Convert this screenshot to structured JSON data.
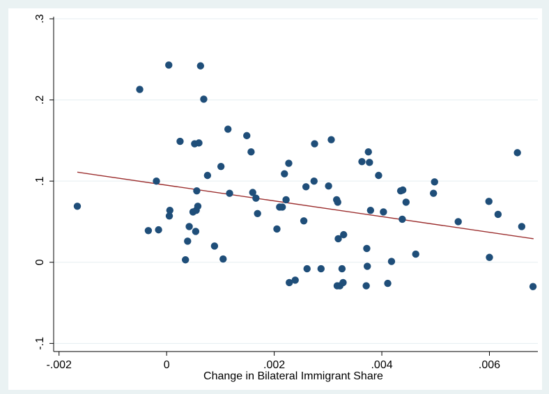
{
  "chart_data": {
    "type": "scatter",
    "title": "",
    "xlabel": "Change in Bilateral Immigrant Share",
    "ylabel": "",
    "xlim": [
      -0.0021,
      0.0069
    ],
    "ylim": [
      -0.11,
      0.3
    ],
    "x_ticks": [
      -0.002,
      0,
      0.002,
      0.004,
      0.006
    ],
    "x_tick_labels": [
      "-.002",
      "0",
      ".002",
      ".004",
      ".006"
    ],
    "y_ticks": [
      -0.1,
      0,
      0.1,
      0.2,
      0.3
    ],
    "y_tick_labels": [
      "-.1",
      "0",
      ".1",
      ".2",
      ".3"
    ],
    "grid": "horizontal",
    "legend": "none",
    "colors": {
      "outer_background": "#eaf2f3",
      "plot_background": "#ffffff",
      "marker": "#1f4e79",
      "fit_line": "#9b2d2d",
      "grid": "#e5eef1"
    },
    "series": [
      {
        "marker": "circle",
        "points": [
          [
            -0.00166,
            0.069
          ],
          [
            -0.0005,
            0.213
          ],
          [
            -0.00034,
            0.039
          ],
          [
            -0.00019,
            0.1
          ],
          [
            -0.00015,
            0.04
          ],
          [
            4e-05,
            0.243
          ],
          [
            5e-05,
            0.057
          ],
          [
            6e-05,
            0.064
          ],
          [
            0.00025,
            0.149
          ],
          [
            0.00035,
            0.003
          ],
          [
            0.00039,
            0.026
          ],
          [
            0.00042,
            0.044
          ],
          [
            0.00049,
            0.062
          ],
          [
            0.00052,
            0.146
          ],
          [
            0.00054,
            0.038
          ],
          [
            0.00055,
            0.064
          ],
          [
            0.00056,
            0.088
          ],
          [
            0.00058,
            0.069
          ],
          [
            0.0006,
            0.147
          ],
          [
            0.00063,
            0.242
          ],
          [
            0.00069,
            0.201
          ],
          [
            0.00076,
            0.107
          ],
          [
            0.00089,
            0.02
          ],
          [
            0.00101,
            0.118
          ],
          [
            0.00105,
            0.004
          ],
          [
            0.00114,
            0.164
          ],
          [
            0.00117,
            0.085
          ],
          [
            0.00149,
            0.156
          ],
          [
            0.00157,
            0.136
          ],
          [
            0.0016,
            0.086
          ],
          [
            0.00166,
            0.079
          ],
          [
            0.00169,
            0.06
          ],
          [
            0.00205,
            0.041
          ],
          [
            0.0021,
            0.068
          ],
          [
            0.00215,
            0.068
          ],
          [
            0.00219,
            0.109
          ],
          [
            0.00222,
            0.077
          ],
          [
            0.00227,
            0.122
          ],
          [
            0.00228,
            -0.025
          ],
          [
            0.00239,
            -0.022
          ],
          [
            0.00255,
            0.051
          ],
          [
            0.00259,
            0.093
          ],
          [
            0.00261,
            -0.008
          ],
          [
            0.00274,
            0.1
          ],
          [
            0.00275,
            0.146
          ],
          [
            0.00287,
            -0.008
          ],
          [
            0.00301,
            0.094
          ],
          [
            0.00306,
            0.151
          ],
          [
            0.00316,
            0.077
          ],
          [
            0.00317,
            -0.029
          ],
          [
            0.00318,
            0.074
          ],
          [
            0.00319,
            0.029
          ],
          [
            0.00322,
            -0.029
          ],
          [
            0.00326,
            -0.008
          ],
          [
            0.00328,
            -0.025
          ],
          [
            0.00329,
            0.034
          ],
          [
            0.00363,
            0.124
          ],
          [
            0.00371,
            -0.029
          ],
          [
            0.00372,
            0.017
          ],
          [
            0.00373,
            -0.005
          ],
          [
            0.00375,
            0.136
          ],
          [
            0.00377,
            0.123
          ],
          [
            0.00379,
            0.064
          ],
          [
            0.00394,
            0.107
          ],
          [
            0.00403,
            0.062
          ],
          [
            0.00411,
            -0.026
          ],
          [
            0.00418,
            0.001
          ],
          [
            0.00435,
            0.088
          ],
          [
            0.00438,
            0.053
          ],
          [
            0.00439,
            0.089
          ],
          [
            0.00445,
            0.074
          ],
          [
            0.00463,
            0.01
          ],
          [
            0.00496,
            0.085
          ],
          [
            0.00498,
            0.099
          ],
          [
            0.00542,
            0.05
          ],
          [
            0.00599,
            0.075
          ],
          [
            0.006,
            0.006
          ],
          [
            0.00616,
            0.059
          ],
          [
            0.00652,
            0.135
          ],
          [
            0.0066,
            0.044
          ],
          [
            0.00681,
            -0.03
          ]
        ]
      }
    ],
    "fit_line": {
      "x": [
        -0.00166,
        0.00682
      ],
      "y": [
        0.111,
        0.029
      ]
    }
  }
}
